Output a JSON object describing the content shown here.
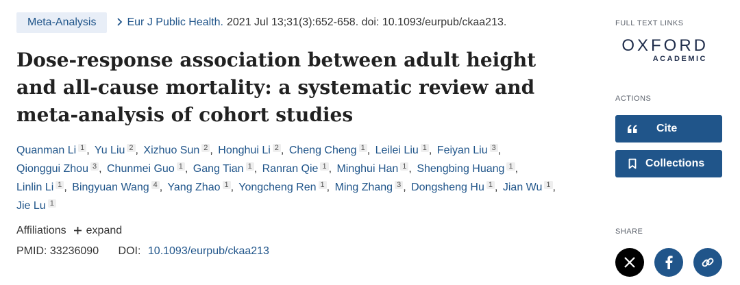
{
  "article": {
    "type_badge": "Meta-Analysis",
    "journal": "Eur J Public Health.",
    "citation": "2021 Jul 13;31(3):652-658. doi: 10.1093/eurpub/ckaa213.",
    "title": "Dose-response association between adult height and all-cause mortality: a systematic review and meta-analysis of cohort studies",
    "authors": [
      {
        "name": "Quanman Li",
        "aff": "1"
      },
      {
        "name": "Yu Liu",
        "aff": "2"
      },
      {
        "name": "Xizhuo Sun",
        "aff": "2"
      },
      {
        "name": "Honghui Li",
        "aff": "2"
      },
      {
        "name": "Cheng Cheng",
        "aff": "1"
      },
      {
        "name": "Leilei Liu",
        "aff": "1"
      },
      {
        "name": "Feiyan Liu",
        "aff": "3"
      },
      {
        "name": "Qionggui Zhou",
        "aff": "3"
      },
      {
        "name": "Chunmei Guo",
        "aff": "1"
      },
      {
        "name": "Gang Tian",
        "aff": "1"
      },
      {
        "name": "Ranran Qie",
        "aff": "1"
      },
      {
        "name": "Minghui Han",
        "aff": "1"
      },
      {
        "name": "Shengbing Huang",
        "aff": "1"
      },
      {
        "name": "Linlin Li",
        "aff": "1"
      },
      {
        "name": "Bingyuan Wang",
        "aff": "4"
      },
      {
        "name": "Yang Zhao",
        "aff": "1"
      },
      {
        "name": "Yongcheng Ren",
        "aff": "1"
      },
      {
        "name": "Ming Zhang",
        "aff": "3"
      },
      {
        "name": "Dongsheng Hu",
        "aff": "1"
      },
      {
        "name": "Jian Wu",
        "aff": "1"
      },
      {
        "name": "Jie Lu",
        "aff": "1"
      }
    ],
    "affiliations_label": "Affiliations",
    "expand_label": "expand",
    "pmid_label": "PMID:",
    "pmid": "33236090",
    "doi_label": "DOI:",
    "doi": "10.1093/eurpub/ckaa213"
  },
  "sidebar": {
    "full_text_links_label": "FULL TEXT LINKS",
    "publisher_logo": {
      "line1": "OXFORD",
      "line2": "ACADEMIC"
    },
    "actions_label": "ACTIONS",
    "cite_label": "Cite",
    "collections_label": "Collections",
    "share_label": "SHARE",
    "share_icons": [
      "x-icon",
      "facebook-icon",
      "link-icon"
    ]
  },
  "colors": {
    "link": "#20558a",
    "button_bg": "#20558a",
    "badge_bg": "#e8eef7",
    "x_share": "#000000",
    "facebook_share": "#20558a",
    "link_share": "#20558a"
  }
}
